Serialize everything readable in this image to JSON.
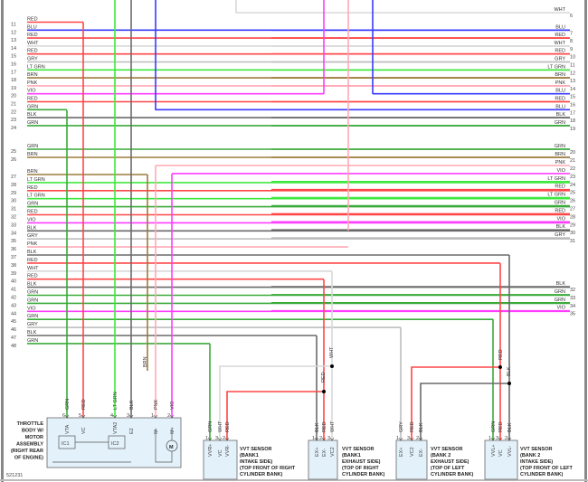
{
  "wire_colors": {
    "RED": "#ff4646",
    "BLU": "#3a3aff",
    "WHT": "#d8d8d8",
    "GRY": "#bdbdbd",
    "LT GRN": "#3fe83f",
    "BRN": "#9b7b3b",
    "PNK": "#ffa8b4",
    "VIO": "#ff3cff",
    "GRN": "#3aaa3a",
    "BLK": "#6a6a6a"
  },
  "left_rows": [
    {
      "pin": "11",
      "color": "RED"
    },
    {
      "pin": "12",
      "color": "BLU"
    },
    {
      "pin": "13",
      "color": "RED"
    },
    {
      "pin": "14",
      "color": "WHT"
    },
    {
      "pin": "15",
      "color": "RED"
    },
    {
      "pin": "16",
      "color": "GRY"
    },
    {
      "pin": "17",
      "color": "LT GRN"
    },
    {
      "pin": "18",
      "color": "BRN"
    },
    {
      "pin": "19",
      "color": "PNK"
    },
    {
      "pin": "20",
      "color": "VIO"
    },
    {
      "pin": "21",
      "color": "RED"
    },
    {
      "pin": "22",
      "color": "GRN"
    },
    {
      "pin": "23",
      "color": "BLK"
    },
    {
      "pin": "24",
      "color": "GRN"
    },
    {
      "pin": "25",
      "color": "GRN"
    },
    {
      "pin": "26",
      "color": "BRN"
    },
    {
      "pin": "27",
      "color": "BRN"
    },
    {
      "pin": "28",
      "color": "LT GRN"
    },
    {
      "pin": "29",
      "color": "RED"
    },
    {
      "pin": "30",
      "color": "LT GRN"
    },
    {
      "pin": "31",
      "color": "GRN"
    },
    {
      "pin": "32",
      "color": "RED"
    },
    {
      "pin": "33",
      "color": "VIO"
    },
    {
      "pin": "34",
      "color": "BLK"
    },
    {
      "pin": "35",
      "color": "GRY"
    },
    {
      "pin": "36",
      "color": "PNK"
    },
    {
      "pin": "37",
      "color": "BLK"
    },
    {
      "pin": "38",
      "color": "RED"
    },
    {
      "pin": "39",
      "color": "WHT"
    },
    {
      "pin": "40",
      "color": "RED"
    },
    {
      "pin": "41",
      "color": "BLK"
    },
    {
      "pin": "42",
      "color": "GRN"
    },
    {
      "pin": "43",
      "color": "GRN"
    },
    {
      "pin": "44",
      "color": "VIO"
    },
    {
      "pin": "45",
      "color": "GRN"
    },
    {
      "pin": "46",
      "color": "GRY"
    },
    {
      "pin": "47",
      "color": "BLK"
    },
    {
      "pin": "48",
      "color": "GRN"
    }
  ],
  "right_rows": [
    {
      "pin": "6",
      "color": "WHT"
    },
    {
      "pin": "7",
      "color": "BLU"
    },
    {
      "pin": "8",
      "color": "RED"
    },
    {
      "pin": "9",
      "color": "WHT"
    },
    {
      "pin": "10",
      "color": "RED"
    },
    {
      "pin": "11",
      "color": "GRY"
    },
    {
      "pin": "12",
      "color": "LT GRN"
    },
    {
      "pin": "13",
      "color": "BRN"
    },
    {
      "pin": "14",
      "color": "PNK"
    },
    {
      "pin": "15",
      "color": "BLU"
    },
    {
      "pin": "16",
      "color": "RED"
    },
    {
      "pin": "17",
      "color": "BLU"
    },
    {
      "pin": "18",
      "color": "BLK"
    },
    {
      "pin": "19",
      "color": "GRN"
    },
    {
      "pin": "20",
      "color": "GRN"
    },
    {
      "pin": "21",
      "color": "BRN"
    },
    {
      "pin": "22",
      "color": "PNK"
    },
    {
      "pin": "23",
      "color": "VIO"
    },
    {
      "pin": "24",
      "color": "LT GRN"
    },
    {
      "pin": "25",
      "color": "RED"
    },
    {
      "pin": "26",
      "color": "LT GRN"
    },
    {
      "pin": "27",
      "color": "GRN"
    },
    {
      "pin": "28",
      "color": "RED"
    },
    {
      "pin": "29",
      "color": "VIO"
    },
    {
      "pin": "30",
      "color": "BLK"
    },
    {
      "pin": "31",
      "color": "GRY"
    },
    {
      "pin": "32",
      "color": "BLK"
    },
    {
      "pin": "33",
      "color": "GRN"
    },
    {
      "pin": "34",
      "color": "GRN"
    },
    {
      "pin": "35",
      "color": "VIO"
    }
  ],
  "mid_labels": {
    "brn": "BRN",
    "wht": "WHT",
    "red1": "RED",
    "red2": "RED",
    "blk": "BLK"
  },
  "components": {
    "throttle": {
      "title_lines": [
        "THROTTLE",
        "BODY W/",
        "MOTOR",
        "ASSEMBLY",
        "(RIGHT REAR",
        "OF ENGINE)"
      ],
      "pins": [
        {
          "num": "6",
          "name": "VTA",
          "wire": "GRN"
        },
        {
          "num": "5",
          "name": "VC",
          "wire": "RED"
        },
        {
          "num": "4",
          "name": "VTA2",
          "wire": "LT GRN"
        },
        {
          "num": "3",
          "name": "E2",
          "wire": "BLK"
        },
        {
          "num": "1",
          "name": "M-",
          "wire": "PNK"
        },
        {
          "num": "2",
          "name": "M+",
          "wire": "VIO"
        }
      ],
      "ic1": "IC1",
      "ic2": "IC2",
      "motor": "M"
    },
    "bank1_intake": {
      "title_lines": [
        "VVT SENSOR",
        "(BANK1",
        "INTAKE SIDE)",
        "(TOP FRONT OF RIGHT",
        "CYLINDER BANK)"
      ],
      "pins": [
        {
          "num": "1",
          "name": "VVR+",
          "wire": "GRN"
        },
        {
          "num": "3",
          "name": "VC",
          "wire": "WHT"
        },
        {
          "num": "2",
          "name": "VVR-",
          "wire": "RED"
        }
      ]
    },
    "bank1_exhaust": {
      "title_lines": [
        "VVT SENSOR",
        "(BANK1",
        "EXHAUST SIDE)",
        "(TOP OF RIGHT",
        "CYLINDER BANK)"
      ],
      "pins": [
        {
          "num": "1",
          "name": "EX+",
          "wire": "BLK"
        },
        {
          "num": "2",
          "name": "EX-",
          "wire": "RED"
        },
        {
          "num": "3",
          "name": "VC2",
          "wire": "WHT"
        }
      ]
    },
    "bank2_exhaust": {
      "title_lines": [
        "VVT SENSOR",
        "(BANK 2",
        "EXHAUST SIDE)",
        "(TOP OF LEFT",
        "CYLINDER BANK)"
      ],
      "pins": [
        {
          "num": "1",
          "name": "EX+",
          "wire": "GRY"
        },
        {
          "num": "3",
          "name": "VC2",
          "wire": "RED"
        },
        {
          "num": "2",
          "name": "EX-",
          "wire": "BLK"
        }
      ]
    },
    "bank2_intake": {
      "title_lines": [
        "VVT SENSOR",
        "(BANK 2",
        "INTAKE SIDE)",
        "(TOP FRONT OF LEFT",
        "CYLINDER BANK)"
      ],
      "pins": [
        {
          "num": "1",
          "name": "VVL+",
          "wire": "GRN"
        },
        {
          "num": "3",
          "name": "VC",
          "wire": "RED"
        },
        {
          "num": "2",
          "name": "VVL-",
          "wire": "BLK"
        }
      ]
    }
  },
  "figure_code": "521231"
}
